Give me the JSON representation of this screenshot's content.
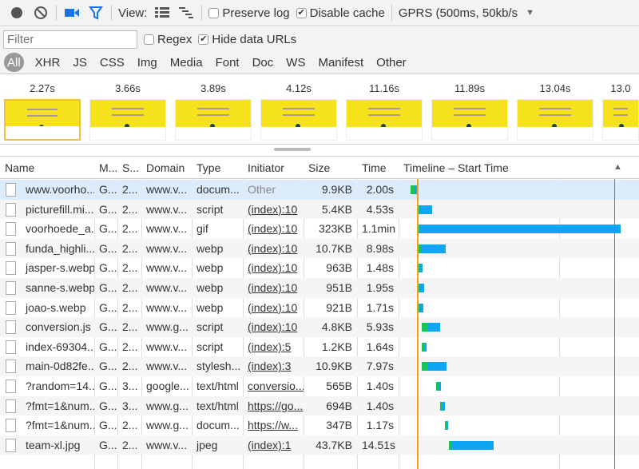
{
  "toolbar": {
    "view_label": "View:",
    "preserve_log": {
      "label": "Preserve log",
      "checked": false
    },
    "disable_cache": {
      "label": "Disable cache",
      "checked": true
    },
    "throttling": "GPRS (500ms, 50kb/s",
    "icons": [
      "record-icon",
      "clear-icon",
      "capture-screenshots-icon",
      "filter-icon",
      "large-rows-icon",
      "overview-icon",
      "dropdown-arrow-icon"
    ],
    "accent": "#1a73e8"
  },
  "filter": {
    "placeholder": "Filter",
    "value": "",
    "regex": {
      "label": "Regex",
      "checked": false
    },
    "hide_data_urls": {
      "label": "Hide data URLs",
      "checked": true
    }
  },
  "types": [
    "All",
    "XHR",
    "JS",
    "CSS",
    "Img",
    "Media",
    "Font",
    "Doc",
    "WS",
    "Manifest",
    "Other"
  ],
  "active_type": "All",
  "filmstrip": [
    "2.27s",
    "3.66s",
    "3.89s",
    "4.12s",
    "11.16s",
    "11.89s",
    "13.04s",
    "13.0"
  ],
  "columns": [
    "Name",
    "M...",
    "S...",
    "Domain",
    "Type",
    "Initiator",
    "Size",
    "Time",
    "Timeline – Start Time"
  ],
  "sort_indicator": "▲",
  "rows": [
    {
      "name": "www.voorho...",
      "method": "G...",
      "status": "2...",
      "domain": "www.v...",
      "type": "docum...",
      "initiator": "Other",
      "size": "9.9KB",
      "time": "2.00s",
      "start": 1.0,
      "dur": 2.0,
      "wait": 0.7
    },
    {
      "name": "picturefill.mi...",
      "method": "G...",
      "status": "2...",
      "domain": "www.v...",
      "type": "script",
      "initiator": "(index):10",
      "size": "5.4KB",
      "time": "4.53s",
      "start": 3.6,
      "dur": 4.53,
      "wait": 0.1
    },
    {
      "name": "voorhoede_a...",
      "method": "G...",
      "status": "2...",
      "domain": "www.v...",
      "type": "gif",
      "initiator": "(index):10",
      "size": "323KB",
      "time": "1.1min",
      "start": 3.4,
      "dur": 66,
      "wait": 0.01
    },
    {
      "name": "funda_highli...",
      "method": "G...",
      "status": "2...",
      "domain": "www.v...",
      "type": "webp",
      "initiator": "(index):10",
      "size": "10.7KB",
      "time": "8.98s",
      "start": 3.4,
      "dur": 8.98,
      "wait": 0.1
    },
    {
      "name": "jasper-s.webp",
      "method": "G...",
      "status": "2...",
      "domain": "www.v...",
      "type": "webp",
      "initiator": "(index):10",
      "size": "963B",
      "time": "1.48s",
      "start": 3.4,
      "dur": 1.48,
      "wait": 0.3
    },
    {
      "name": "sanne-s.webp",
      "method": "G...",
      "status": "2...",
      "domain": "www.v...",
      "type": "webp",
      "initiator": "(index):10",
      "size": "951B",
      "time": "1.95s",
      "start": 3.4,
      "dur": 1.95,
      "wait": 0.3
    },
    {
      "name": "joao-s.webp",
      "method": "G...",
      "status": "2...",
      "domain": "www.v...",
      "type": "webp",
      "initiator": "(index):10",
      "size": "921B",
      "time": "1.71s",
      "start": 3.4,
      "dur": 1.71,
      "wait": 0.3
    },
    {
      "name": "conversion.js",
      "method": "G...",
      "status": "2...",
      "domain": "www.g...",
      "type": "script",
      "initiator": "(index):10",
      "size": "4.8KB",
      "time": "5.93s",
      "start": 4.7,
      "dur": 5.93,
      "wait": 0.3
    },
    {
      "name": "index-69304...",
      "method": "G...",
      "status": "2...",
      "domain": "www.v...",
      "type": "script",
      "initiator": "(index):5",
      "size": "1.2KB",
      "time": "1.64s",
      "start": 4.7,
      "dur": 1.64,
      "wait": 0.6
    },
    {
      "name": "main-0d82fe...",
      "method": "G...",
      "status": "2...",
      "domain": "www.v...",
      "type": "stylesh...",
      "initiator": "(index):3",
      "size": "10.9KB",
      "time": "7.97s",
      "start": 4.7,
      "dur": 7.97,
      "wait": 0.25
    },
    {
      "name": "?random=14...",
      "method": "G...",
      "status": "3...",
      "domain": "google...",
      "type": "text/html",
      "initiator": "conversio...",
      "size": "565B",
      "time": "1.40s",
      "start": 9.4,
      "dur": 1.4,
      "wait": 0.6
    },
    {
      "name": "?fmt=1&num...",
      "method": "G...",
      "status": "3...",
      "domain": "www.g...",
      "type": "text/html",
      "initiator": "https://go...",
      "size": "694B",
      "time": "1.40s",
      "start": 10.7,
      "dur": 1.4,
      "wait": 0.6
    },
    {
      "name": "?fmt=1&num...",
      "method": "G...",
      "status": "2...",
      "domain": "www.g...",
      "type": "docum...",
      "initiator": "https://w...",
      "size": "347B",
      "time": "1.17s",
      "start": 12.2,
      "dur": 1.17,
      "wait": 0.6
    },
    {
      "name": "team-xl.jpg",
      "method": "G...",
      "status": "2...",
      "domain": "www.v...",
      "type": "jpeg",
      "initiator": "(index):1",
      "size": "43.7KB",
      "time": "14.51s",
      "start": 13.5,
      "dur": 14.51,
      "wait": 0.05
    }
  ],
  "timeline": {
    "dom_content_loaded": 3.1,
    "load": 67.3,
    "wait_color": "#19c35a",
    "download_color": "#0fa5f5",
    "dcl_color": "#f0a020",
    "load_color": "#e05050"
  }
}
